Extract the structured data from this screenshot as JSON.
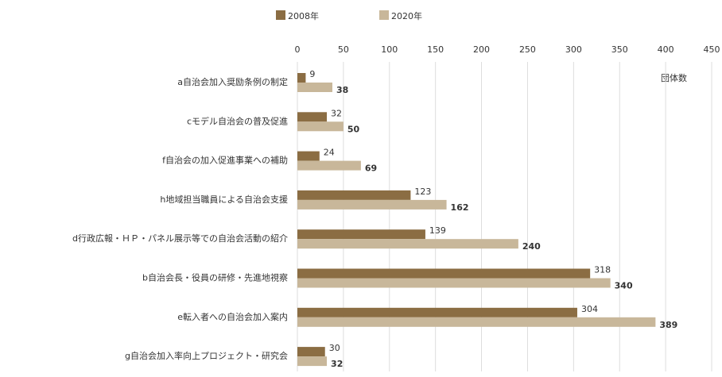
{
  "chart_data": {
    "type": "hbar",
    "categories": [
      "a自治会加入奨励条例の制定",
      "cモデル自治会の普及促進",
      "f自治会の加入促進事業への補助",
      "h地域担当職員による自治会支援",
      "d行政広報・ＨＰ・パネル展示等での自治会活動の紹介",
      "b自治会長・役員の研修・先進地視察",
      "e転入者への自治会加入案内",
      "g自治会加入率向上プロジェクト・研究会"
    ],
    "series": [
      {
        "name": "2008年",
        "color": "#8b6d43",
        "values": [
          9,
          32,
          24,
          123,
          139,
          318,
          304,
          30
        ]
      },
      {
        "name": "2020年",
        "color": "#c8b79a",
        "values": [
          38,
          50,
          69,
          162,
          240,
          340,
          389,
          32
        ]
      }
    ],
    "xlim": [
      0,
      450
    ],
    "xticks": [
      0,
      50,
      100,
      150,
      200,
      250,
      300,
      350,
      400,
      450
    ],
    "x_unit": "団体数",
    "grid": true,
    "legend": "top"
  }
}
